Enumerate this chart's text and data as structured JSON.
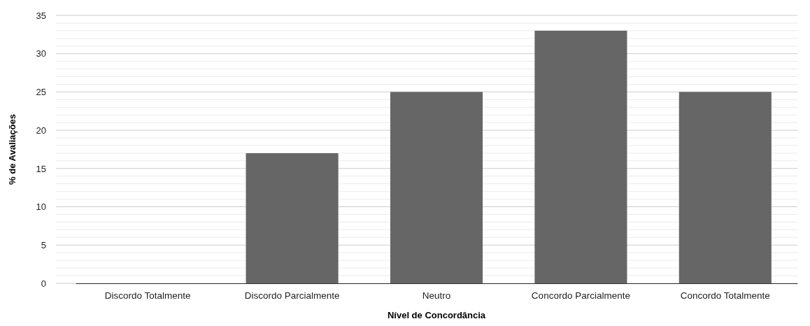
{
  "chart_data": {
    "type": "bar",
    "xlabel": "Nível de Concordância",
    "ylabel": "% de Avaliações",
    "categories": [
      "Discordo Totalmente",
      "Discordo Parcialmente",
      "Neutro",
      "Concordo Parcialmente",
      "Concordo Totalmente"
    ],
    "values": [
      0,
      17,
      25,
      33,
      25
    ],
    "color": "#666666",
    "ylim": [
      0,
      35
    ],
    "yticks": [
      0,
      {
        "value": 1,
        "label": null
      },
      {
        "value": 2,
        "label": null
      },
      {
        "value": 3,
        "label": null
      },
      {
        "value": 4,
        "label": null
      },
      5,
      {
        "value": 6,
        "label": null
      },
      {
        "value": 7,
        "label": null
      },
      {
        "value": 8,
        "label": null
      },
      {
        "value": 9,
        "label": null
      },
      10,
      {
        "value": 11,
        "label": null
      },
      {
        "value": 12,
        "label": null
      },
      {
        "value": 13,
        "label": null
      },
      {
        "value": 14,
        "label": null
      },
      15,
      {
        "value": 16,
        "label": null
      },
      {
        "value": 17,
        "label": null
      },
      {
        "value": 18,
        "label": null
      },
      {
        "value": 19,
        "label": null
      },
      20,
      {
        "value": 21,
        "label": null
      },
      {
        "value": 22,
        "label": null
      },
      {
        "value": 23,
        "label": null
      },
      {
        "value": 24,
        "label": null
      },
      25,
      {
        "value": 26,
        "label": null
      },
      {
        "value": 27,
        "label": null
      },
      {
        "value": 28,
        "label": null
      },
      {
        "value": 29,
        "label": null
      },
      30,
      {
        "value": 31,
        "label": null
      },
      {
        "value": 32,
        "label": null
      },
      {
        "value": 33,
        "label": null
      },
      {
        "value": 34,
        "label": null
      },
      35
    ],
    "grid": "y"
  }
}
